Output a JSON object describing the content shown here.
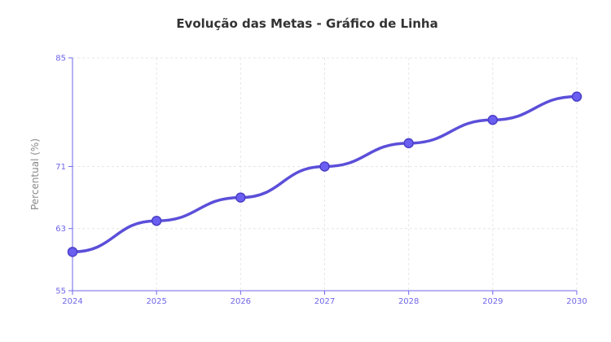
{
  "chart_data": {
    "type": "line",
    "title": "Evolução das Metas - Gráfico de Linha",
    "xlabel": "",
    "ylabel": "Percentual (%)",
    "categories": [
      "2024",
      "2025",
      "2026",
      "2027",
      "2028",
      "2029",
      "2030"
    ],
    "series": [
      {
        "values": [
          60,
          64,
          67,
          71,
          74,
          77,
          80
        ]
      }
    ],
    "ylim": [
      55,
      85
    ],
    "yticks": [
      55,
      63,
      71,
      85
    ],
    "grid": true,
    "colors": {
      "line": "#5b4fd9",
      "axis": "#6f66e8",
      "tick_text": "#6f66e8",
      "grid": "#e6e6e6"
    }
  }
}
